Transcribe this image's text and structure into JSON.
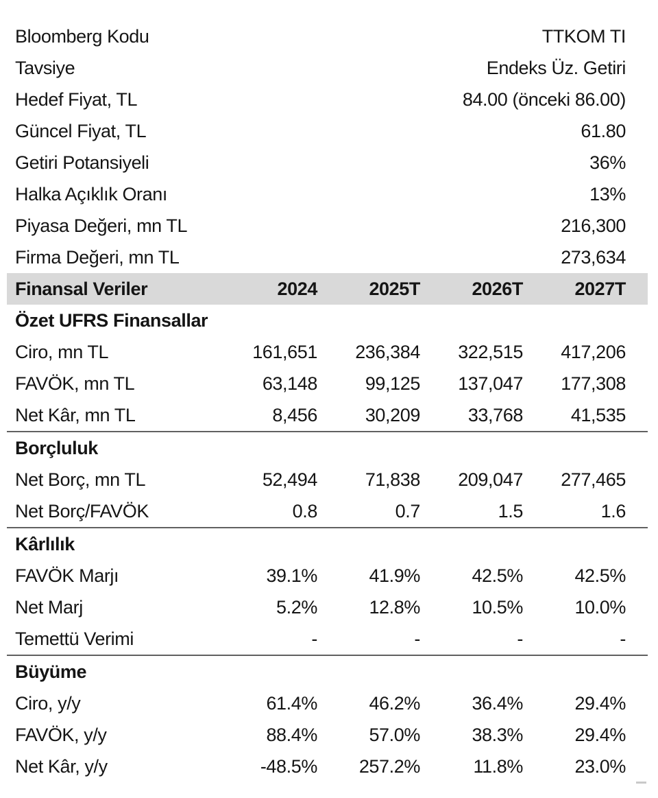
{
  "company_info": {
    "rows": [
      {
        "label": "Bloomberg Kodu",
        "value": "TTKOM TI"
      },
      {
        "label": "Tavsiye",
        "value": "Endeks Üz. Getiri"
      },
      {
        "label": "Hedef Fiyat, TL",
        "value": "84.00 (önceki 86.00)"
      },
      {
        "label": "Güncel Fiyat, TL",
        "value": "61.80"
      },
      {
        "label": "Getiri Potansiyeli",
        "value": "36%"
      },
      {
        "label": "Halka Açıklık Oranı",
        "value": "13%"
      },
      {
        "label": "Piyasa Değeri, mn TL",
        "value": "216,300"
      },
      {
        "label": "Firma Değeri, mn TL",
        "value": "273,634"
      }
    ]
  },
  "table": {
    "header": {
      "label": "Finansal Veriler",
      "columns": [
        "2024",
        "2025T",
        "2026T",
        "2027T"
      ]
    },
    "sections": [
      {
        "title": "Özet UFRS Finansallar",
        "rows": [
          {
            "label": "Ciro, mn TL",
            "values": [
              "161,651",
              "236,384",
              "322,515",
              "417,206"
            ]
          },
          {
            "label": "FAVÖK, mn TL",
            "values": [
              "63,148",
              "99,125",
              "137,047",
              "177,308"
            ]
          },
          {
            "label": "Net Kâr, mn TL",
            "values": [
              "8,456",
              "30,209",
              "33,768",
              "41,535"
            ]
          }
        ]
      },
      {
        "title": "Borçluluk",
        "rows": [
          {
            "label": "Net Borç, mn TL",
            "values": [
              "52,494",
              "71,838",
              "209,047",
              "277,465"
            ]
          },
          {
            "label": "Net Borç/FAVÖK",
            "values": [
              "0.8",
              "0.7",
              "1.5",
              "1.6"
            ]
          }
        ]
      },
      {
        "title": "Kârlılık",
        "rows": [
          {
            "label": "FAVÖK Marjı",
            "values": [
              "39.1%",
              "41.9%",
              "42.5%",
              "42.5%"
            ]
          },
          {
            "label": "Net Marj",
            "values": [
              "5.2%",
              "12.8%",
              "10.5%",
              "10.0%"
            ]
          },
          {
            "label": "Temettü Verimi",
            "values": [
              "-",
              "-",
              "-",
              "-"
            ]
          }
        ]
      },
      {
        "title": "Büyüme",
        "rows": [
          {
            "label": "Ciro, y/y",
            "values": [
              "61.4%",
              "46.2%",
              "36.4%",
              "29.4%"
            ]
          },
          {
            "label": "FAVÖK, y/y",
            "values": [
              "88.4%",
              "57.0%",
              "38.3%",
              "29.4%"
            ]
          },
          {
            "label": "Net Kâr, y/y",
            "values": [
              "-48.5%",
              "257.2%",
              "11.8%",
              "23.0%"
            ]
          }
        ]
      }
    ]
  },
  "colors": {
    "header_band_bg": "#d9d9d9",
    "rule": "#606060",
    "text": "#151515"
  }
}
